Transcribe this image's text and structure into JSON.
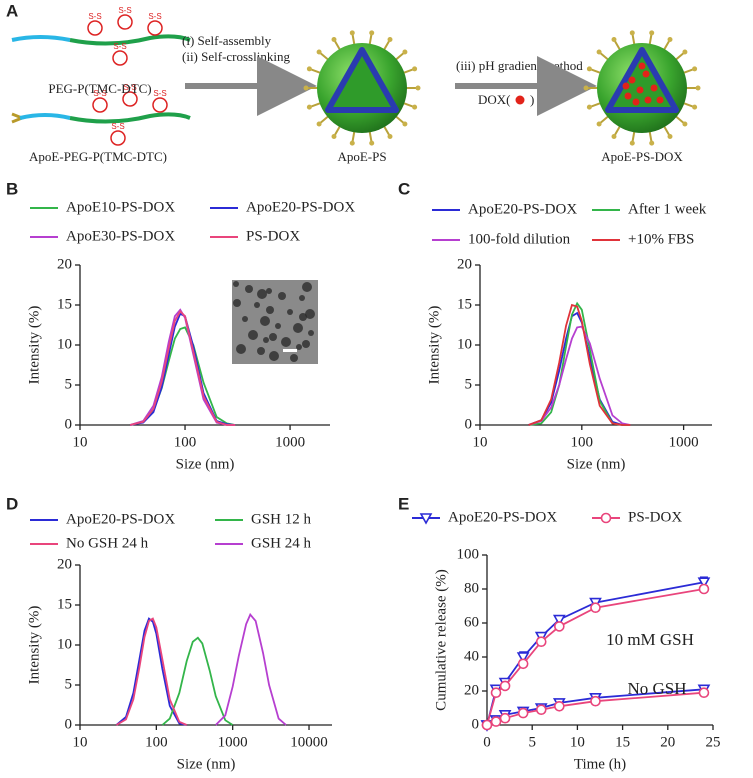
{
  "scheme": {
    "panel": "A",
    "polymer_1": "PEG-P(TMC-DTC)",
    "polymer_2": "ApoE-PEG-P(TMC-DTC)",
    "step_1": "(i) Self-assembly",
    "step_2": "(ii) Self-crosslinking",
    "product_1": "ApoE-PS",
    "step_3": "(iii) pH gradient method",
    "drug_open": "DOX(",
    "drug_close": ")",
    "product_2": "ApoE-PS-DOX",
    "disulfide": "S-S"
  },
  "chart_data": [
    {
      "type": "line",
      "panel": "B",
      "xlabel": "Size (nm)",
      "ylabel": "Intensity (%)",
      "log_x": true,
      "xlim": [
        10,
        2400
      ],
      "xticks": [
        10,
        100,
        1000
      ],
      "ylim": [
        0,
        20
      ],
      "yticks": [
        0,
        5,
        10,
        15,
        20
      ],
      "x": [
        30,
        40,
        50,
        60,
        70,
        80,
        90,
        100,
        120,
        150,
        200,
        250,
        300
      ],
      "series": [
        {
          "name": "ApoE10-PS-DOX",
          "color": "#33b54a",
          "values": [
            0.0,
            0.4,
            1.8,
            4.6,
            8.0,
            10.8,
            12.0,
            12.2,
            10.0,
            5.3,
            1.0,
            0.2,
            0.0
          ]
        },
        {
          "name": "ApoE20-PS-DOX",
          "color": "#2b2bd6",
          "values": [
            0.0,
            0.3,
            1.6,
            4.7,
            8.8,
            12.3,
            13.9,
            13.6,
            9.8,
            4.0,
            0.5,
            0.1,
            0.0
          ]
        },
        {
          "name": "ApoE30-PS-DOX",
          "color": "#b63fd0",
          "values": [
            0.0,
            0.5,
            2.4,
            6.0,
            10.4,
            13.6,
            14.4,
            13.4,
            8.8,
            3.2,
            0.3,
            0.0,
            0.0
          ]
        },
        {
          "name": "PS-DOX",
          "color": "#e9457c",
          "values": [
            0.0,
            0.4,
            2.0,
            5.4,
            9.6,
            13.0,
            14.2,
            13.6,
            9.2,
            3.6,
            0.4,
            0.0,
            0.0
          ]
        }
      ]
    },
    {
      "type": "line",
      "panel": "C",
      "xlabel": "Size (nm)",
      "ylabel": "Intensity (%)",
      "log_x": true,
      "xlim": [
        10,
        1900
      ],
      "xticks": [
        10,
        100,
        1000
      ],
      "ylim": [
        0,
        20
      ],
      "yticks": [
        0,
        5,
        10,
        15,
        20
      ],
      "x": [
        30,
        40,
        50,
        60,
        70,
        80,
        90,
        100,
        120,
        150,
        200,
        250,
        300
      ],
      "series": [
        {
          "name": "ApoE20-PS-DOX",
          "color": "#2b2bd6",
          "values": [
            0.0,
            0.6,
            2.8,
            6.8,
            10.8,
            13.6,
            14.0,
            12.8,
            8.4,
            3.2,
            0.4,
            0.0,
            0.0
          ]
        },
        {
          "name": "After 1 week",
          "color": "#33b54a",
          "values": [
            0.0,
            0.2,
            1.6,
            5.0,
            9.8,
            13.8,
            15.2,
            14.4,
            9.4,
            3.0,
            0.2,
            0.0,
            0.0
          ]
        },
        {
          "name": "100-fold dilution",
          "color": "#b63fd0",
          "values": [
            0.0,
            0.5,
            2.2,
            5.0,
            8.2,
            10.8,
            12.2,
            12.3,
            10.2,
            5.8,
            1.2,
            0.2,
            0.0
          ]
        },
        {
          "name": "+10% FBS",
          "color": "#e0333a",
          "values": [
            0.0,
            0.6,
            3.2,
            7.8,
            12.4,
            15.0,
            14.8,
            13.0,
            7.6,
            2.4,
            0.2,
            0.0,
            0.0
          ]
        }
      ]
    },
    {
      "type": "line",
      "panel": "D",
      "xlabel": "Size (nm)",
      "ylabel": "Intensity (%)",
      "log_x": true,
      "xlim": [
        10,
        20000
      ],
      "xticks": [
        10,
        100,
        1000,
        10000
      ],
      "ylim": [
        0,
        20
      ],
      "yticks": [
        0,
        5,
        10,
        15,
        20
      ],
      "series": [
        {
          "name": "ApoE20-PS-DOX",
          "color": "#2b2bd6",
          "x": [
            30,
            40,
            50,
            60,
            70,
            80,
            90,
            100,
            120,
            150,
            200,
            250
          ],
          "values": [
            0.0,
            1.0,
            4.0,
            8.2,
            11.8,
            13.3,
            12.9,
            11.4,
            7.0,
            2.4,
            0.2,
            0.0
          ]
        },
        {
          "name": "GSH 12 h",
          "color": "#33b54a",
          "x": [
            120,
            150,
            200,
            250,
            300,
            350,
            400,
            500,
            600,
            800,
            1000
          ],
          "values": [
            0.0,
            0.8,
            4.0,
            8.0,
            10.4,
            10.9,
            10.2,
            6.8,
            3.6,
            0.6,
            0.0
          ]
        },
        {
          "name": "No GSH 24 h",
          "color": "#e9457c",
          "x": [
            30,
            40,
            50,
            60,
            70,
            80,
            90,
            100,
            120,
            150,
            200,
            250
          ],
          "values": [
            0.0,
            0.7,
            3.2,
            7.2,
            11.0,
            13.0,
            13.3,
            12.2,
            8.2,
            3.2,
            0.4,
            0.0
          ]
        },
        {
          "name": "GSH 24 h",
          "color": "#b63fd0",
          "x": [
            600,
            800,
            1000,
            1200,
            1500,
            1700,
            2000,
            2500,
            3000,
            4000,
            5000
          ],
          "values": [
            0.0,
            1.2,
            4.8,
            8.6,
            12.6,
            13.8,
            13.0,
            9.0,
            5.0,
            0.8,
            0.0
          ]
        }
      ]
    },
    {
      "type": "errorline",
      "panel": "E",
      "xlabel": "Time (h)",
      "ylabel": "Cumulative release (%)",
      "xlim": [
        0,
        25
      ],
      "xticks": [
        0,
        5,
        10,
        15,
        20,
        25
      ],
      "ylim": [
        0,
        100
      ],
      "yticks": [
        0,
        20,
        40,
        60,
        80,
        100
      ],
      "x": [
        0,
        1,
        2,
        4,
        6,
        8,
        12,
        24
      ],
      "annotations": [
        "10 mM GSH",
        "No GSH"
      ],
      "series": [
        {
          "name": "ApoE20-PS-DOX",
          "color": "#2b2bd6",
          "marker": "triangle-down",
          "values": [
            0,
            21,
            25,
            40,
            52,
            62,
            72,
            84
          ],
          "errors": [
            0,
            1,
            1,
            3,
            2,
            1.5,
            1,
            3
          ]
        },
        {
          "name": "PS-DOX",
          "color": "#e9457c",
          "marker": "circle",
          "values": [
            0,
            19,
            23,
            36,
            49,
            58,
            69,
            80
          ],
          "errors": [
            0,
            1,
            1,
            2,
            2,
            1.5,
            1,
            2
          ]
        },
        {
          "color": "#2b2bd6",
          "marker": "triangle-down",
          "values": [
            0,
            3,
            6,
            8,
            10,
            13,
            16,
            21
          ],
          "errors": [
            0,
            1,
            1,
            1,
            1,
            1,
            1,
            1
          ]
        },
        {
          "color": "#e9457c",
          "marker": "circle",
          "values": [
            0,
            2,
            4,
            7,
            9,
            11,
            14,
            19
          ],
          "errors": [
            0,
            1,
            1,
            1,
            1,
            1,
            1,
            1
          ]
        }
      ]
    }
  ]
}
